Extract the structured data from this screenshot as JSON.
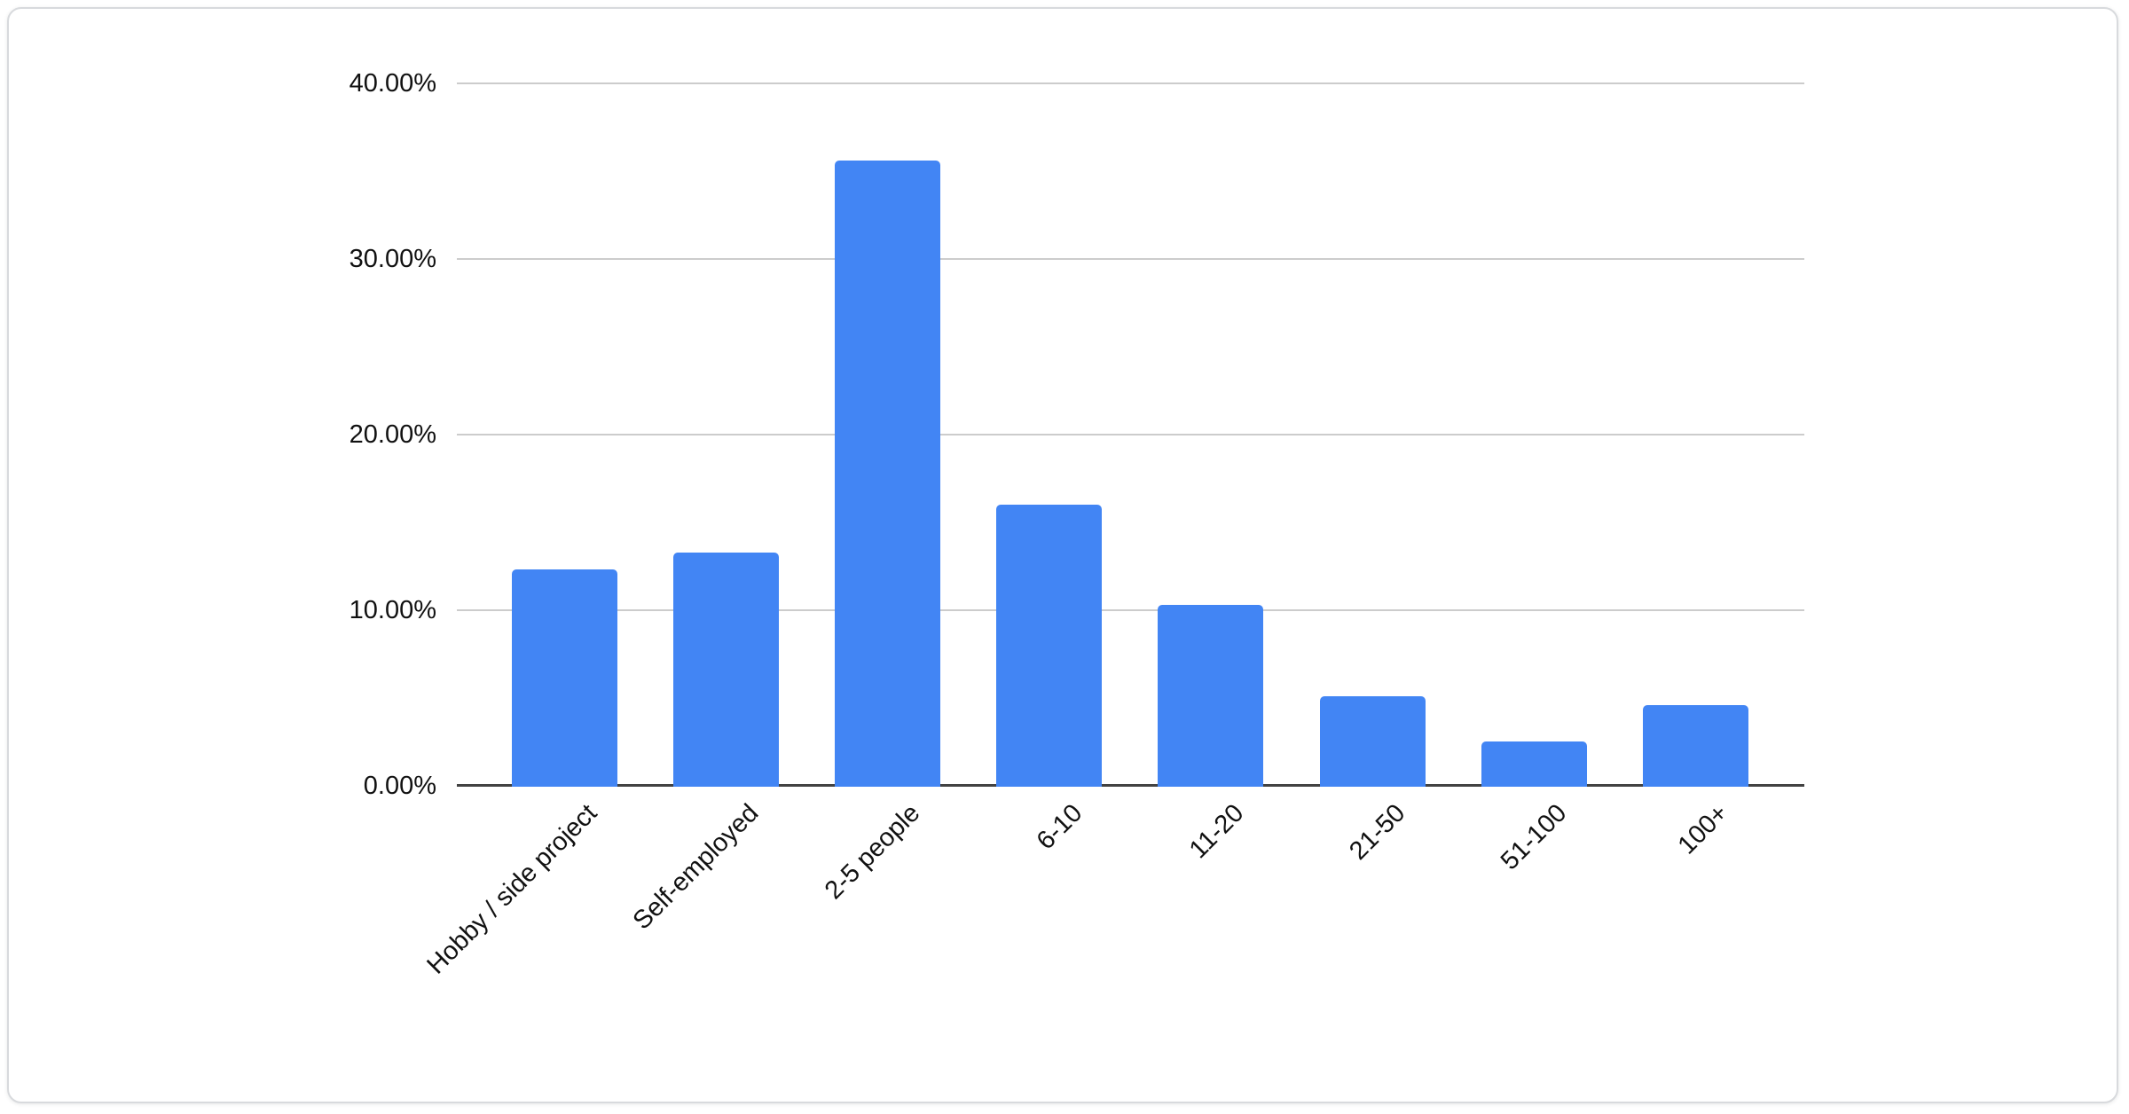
{
  "card": {
    "background": "#ffffff",
    "border_color": "#d8dadd"
  },
  "chart_data": {
    "type": "bar",
    "title": "",
    "subtitle": "",
    "xlabel": "",
    "ylabel": "",
    "categories": [
      "Hobby / side project",
      "Self-employed",
      "2-5 people",
      "6-10",
      "11-20",
      "21-50",
      "51-100",
      "100+"
    ],
    "values": [
      12.2,
      13.2,
      35.5,
      15.9,
      10.2,
      5.0,
      2.4,
      4.5
    ],
    "value_unit": "percent",
    "ylim": [
      0,
      40
    ],
    "yticks": [
      {
        "value": 0,
        "label": "0.00%"
      },
      {
        "value": 10,
        "label": "10.00%"
      },
      {
        "value": 20,
        "label": "20.00%"
      },
      {
        "value": 30,
        "label": "30.00%"
      },
      {
        "value": 40,
        "label": "40.00%"
      }
    ],
    "grid": true,
    "legend": "none",
    "x_label_rotation_deg": 45,
    "bar_color": "#4285f4",
    "gridline_color": "#cccccc",
    "axis_line_color": "#424242",
    "text_color": "#111111"
  }
}
